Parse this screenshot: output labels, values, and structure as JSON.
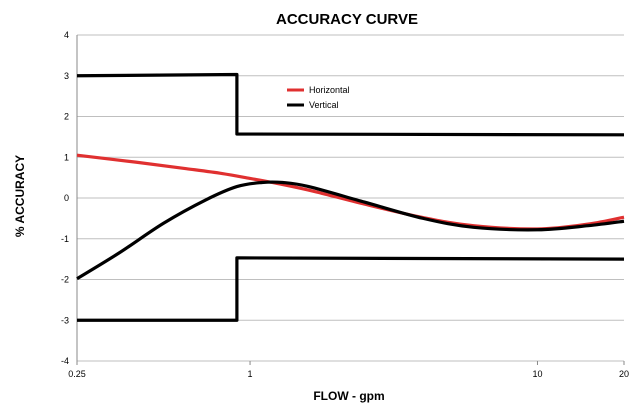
{
  "chart_data": {
    "type": "line",
    "title": "ACCURACY CURVE",
    "xlabel": "FLOW - gpm",
    "ylabel": "% ACCURACY",
    "x_scale": "log",
    "xlim": [
      0.25,
      20
    ],
    "ylim": [
      -4,
      4
    ],
    "x_ticks": [
      0.25,
      1,
      10,
      20
    ],
    "x_tick_labels": [
      "0.25",
      "1",
      "10",
      "20"
    ],
    "y_ticks": [
      -4,
      -3,
      -2,
      -1,
      0,
      1,
      2,
      3,
      4
    ],
    "y_tick_labels": [
      "-4",
      "-3",
      "-2",
      "-1",
      "0",
      "1",
      "2",
      "3",
      "4"
    ],
    "grid": "horizontal",
    "legend_position": "upper-middle",
    "series": [
      {
        "name": "Horizontal",
        "color": "#e03030",
        "x": [
          0.25,
          0.4,
          0.6,
          0.8,
          1.0,
          1.3,
          1.7,
          2.5,
          4,
          6,
          10,
          15,
          20
        ],
        "y": [
          1.05,
          0.88,
          0.72,
          0.6,
          0.48,
          0.33,
          0.15,
          -0.15,
          -0.48,
          -0.68,
          -0.76,
          -0.64,
          -0.47
        ]
      },
      {
        "name": "Vertical",
        "color": "#000000",
        "x": [
          0.25,
          0.35,
          0.5,
          0.7,
          0.9,
          1.1,
          1.3,
          1.6,
          2.5,
          4,
          6,
          10,
          15,
          20
        ],
        "y": [
          -1.98,
          -1.35,
          -0.62,
          -0.05,
          0.28,
          0.38,
          0.38,
          0.28,
          -0.1,
          -0.5,
          -0.72,
          -0.78,
          -0.68,
          -0.57
        ]
      },
      {
        "color": "#000000",
        "x": [
          0.25,
          0.9,
          0.9,
          20
        ],
        "y": [
          3.0,
          3.03,
          1.57,
          1.55
        ]
      },
      {
        "color": "#000000",
        "x": [
          0.25,
          0.9,
          0.9,
          20
        ],
        "y": [
          -3.0,
          -3.0,
          -1.47,
          -1.5
        ]
      }
    ]
  }
}
